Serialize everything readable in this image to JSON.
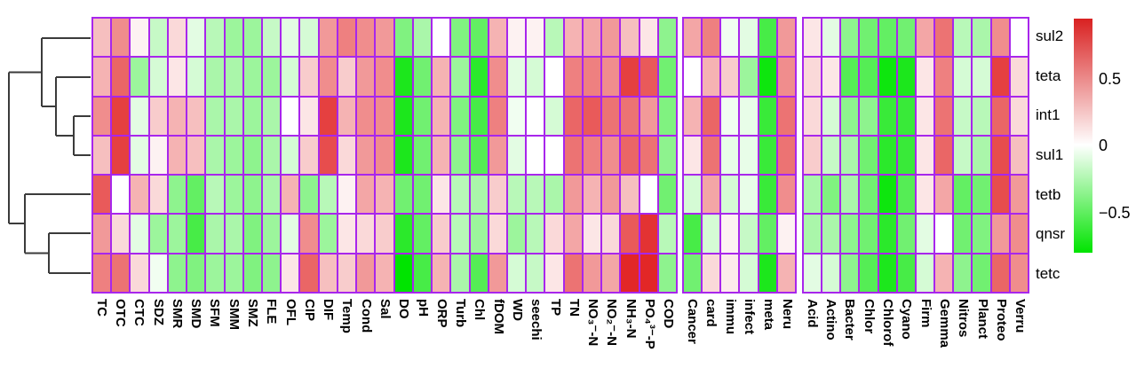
{
  "chart_data": {
    "type": "heatmap",
    "title": "",
    "rows": [
      "sul2",
      "teta",
      "int1",
      "sul1",
      "tetb",
      "qnsr",
      "tetc"
    ],
    "column_panels": [
      {
        "name": "antibiotics-and-water-quality",
        "columns": [
          "TC",
          "OTC",
          "CTC",
          "SDZ",
          "SMR",
          "SMD",
          "SFM",
          "SMM",
          "SMZ",
          "FLE",
          "OFL",
          "CIP",
          "DIF",
          "Temp",
          "Cond",
          "Sal",
          "DO",
          "pH",
          "ORP",
          "Turb",
          "Chl",
          "fDOM",
          "WD",
          "seechi",
          "TP",
          "TN",
          "NO₃⁻-N",
          "NO₂⁻-N",
          "NH₃-N",
          "PO₄³⁻-P",
          "COD"
        ]
      },
      {
        "name": "disease-categories",
        "columns": [
          "Cancer",
          "card",
          "immu",
          "infect",
          "meta",
          "Neru"
        ]
      },
      {
        "name": "bacterial-phyla",
        "columns": [
          "Acid",
          "Actino",
          "Bacter",
          "Chlor",
          "Chlorof",
          "Cyano",
          "Firm",
          "Gemma",
          "Nitros",
          "Planct",
          "Proteo",
          "Verru"
        ]
      }
    ],
    "values": [
      [
        0.25,
        0.45,
        0.05,
        -0.2,
        0.15,
        -0.1,
        -0.25,
        -0.35,
        -0.35,
        -0.2,
        -0.1,
        -0.15,
        0.4,
        0.5,
        0.45,
        0.4,
        -0.45,
        -0.3,
        0,
        -0.45,
        -0.55,
        0.3,
        0.05,
        0.05,
        -0.25,
        0.3,
        0.35,
        0.4,
        0.25,
        0.1,
        -0.4,
        0.35,
        0.5,
        -0.05,
        -0.1,
        -0.65,
        0.4,
        0.1,
        -0.1,
        -0.4,
        -0.5,
        -0.55,
        -0.5,
        0.35,
        0.55,
        -0.25,
        -0.3,
        0.45,
        0
      ],
      [
        0.3,
        0.6,
        -0.35,
        -0.15,
        0.1,
        -0.15,
        -0.3,
        -0.3,
        -0.35,
        -0.35,
        -0.15,
        0.2,
        0.45,
        0.2,
        0.4,
        0.45,
        -0.8,
        -0.5,
        0.3,
        -0.35,
        -0.75,
        0.45,
        -0.1,
        -0.15,
        0,
        0.5,
        0.5,
        0.45,
        0.75,
        0.65,
        -0.5,
        0,
        0.3,
        0.2,
        -0.35,
        -0.85,
        0.45,
        0.15,
        0.1,
        -0.6,
        -0.6,
        -0.85,
        -0.8,
        0.1,
        0.5,
        -0.15,
        -0.15,
        0.75,
        0.15
      ],
      [
        0.45,
        0.75,
        -0.1,
        0.2,
        0.3,
        0.25,
        -0.3,
        -0.3,
        -0.35,
        -0.3,
        0,
        0.1,
        0.75,
        0.3,
        0.45,
        0.45,
        -0.8,
        -0.5,
        0.3,
        -0.45,
        -0.65,
        0.5,
        -0.05,
        0,
        -0.15,
        0.6,
        0.65,
        0.55,
        0.55,
        0.4,
        -0.45,
        0.3,
        0.6,
        -0.05,
        -0.08,
        -0.7,
        0.55,
        0.15,
        -0.15,
        -0.4,
        -0.4,
        -0.7,
        -0.7,
        0.1,
        0.55,
        -0.2,
        -0.25,
        0.6,
        0.15
      ],
      [
        0.25,
        0.75,
        -0.1,
        0.05,
        0.3,
        0.25,
        -0.3,
        -0.35,
        -0.4,
        -0.3,
        -0.15,
        0.2,
        0.7,
        0.15,
        0.4,
        0.45,
        -0.8,
        -0.5,
        0.3,
        -0.4,
        -0.6,
        0.4,
        -0.1,
        0,
        0,
        0.55,
        0.5,
        0.45,
        0.6,
        0.55,
        -0.4,
        0.1,
        0.55,
        -0.08,
        -0.08,
        -0.7,
        0.55,
        0.2,
        -0.2,
        -0.3,
        -0.5,
        -0.75,
        -0.7,
        0.1,
        0.6,
        -0.2,
        -0.3,
        0.7,
        0.25
      ],
      [
        0.65,
        0,
        0.3,
        0.15,
        -0.4,
        -0.55,
        -0.25,
        -0.35,
        -0.4,
        -0.3,
        0.3,
        -0.4,
        -0.25,
        0.05,
        0.35,
        0.3,
        -0.5,
        -0.5,
        0.1,
        -0.25,
        -0.3,
        0.2,
        -0.25,
        -0.25,
        -0.3,
        0.4,
        0.3,
        0.4,
        0.25,
        0,
        -0.5,
        -0.15,
        0.35,
        -0.15,
        -0.08,
        -0.7,
        0.45,
        -0.3,
        -0.45,
        -0.3,
        -0.5,
        -0.85,
        -0.6,
        0.1,
        0.35,
        -0.55,
        -0.5,
        0.7,
        0.4
      ],
      [
        0.4,
        0.15,
        -0.1,
        -0.35,
        -0.35,
        -0.65,
        -0.3,
        -0.3,
        -0.45,
        -0.35,
        -0.1,
        0.45,
        -0.35,
        0.1,
        0.15,
        0.2,
        -0.75,
        -0.55,
        0.2,
        -0.25,
        -0.35,
        0.15,
        -0.35,
        -0.25,
        0.15,
        0.35,
        0.1,
        0.15,
        0.65,
        0.8,
        -0.25,
        -0.65,
        -0.15,
        0.05,
        -0.2,
        -0.55,
        0.05,
        -0.3,
        -0.3,
        -0.4,
        -0.5,
        -0.75,
        -0.5,
        -0.1,
        0,
        -0.5,
        -0.45,
        0.4,
        0.45
      ],
      [
        0.5,
        0.55,
        0.15,
        -0.05,
        -0.4,
        -0.45,
        -0.35,
        -0.35,
        -0.45,
        -0.4,
        0.1,
        0.6,
        0.25,
        0.2,
        0.4,
        0.3,
        -0.9,
        -0.65,
        0.3,
        -0.3,
        -0.6,
        0.4,
        -0.15,
        -0.2,
        0.1,
        0.55,
        0.4,
        0.35,
        0.85,
        0.85,
        -0.4,
        -0.5,
        0.15,
        0.08,
        -0.15,
        -0.8,
        0.3,
        -0.1,
        -0.15,
        -0.4,
        -0.6,
        -0.8,
        -0.65,
        -0.15,
        0.3,
        -0.4,
        -0.5,
        0.6,
        0.45
      ]
    ],
    "colorscale": {
      "min": -0.9,
      "max": 0.9,
      "max_color": "#E01A1A",
      "mid_color": "#FFFFFF",
      "min_color": "#00E400"
    },
    "legend_position": "right",
    "row_dendrogram": {
      "topology": "((sul2,(teta,(int1,sul1))),(tetb,(qnsr,tetc)))",
      "segments": [
        [
          102,
          43,
          47,
          43
        ],
        [
          47,
          43,
          47,
          120
        ],
        [
          102,
          87,
          63,
          87
        ],
        [
          102,
          131,
          83,
          131
        ],
        [
          102,
          175,
          83,
          175
        ],
        [
          83,
          131,
          83,
          175
        ],
        [
          83,
          153,
          63,
          153
        ],
        [
          63,
          87,
          63,
          153
        ],
        [
          63,
          120,
          47,
          120
        ],
        [
          47,
          81.5,
          10,
          81.5
        ],
        [
          10,
          81.5,
          10,
          252
        ],
        [
          102,
          219,
          28,
          219
        ],
        [
          102,
          263,
          55,
          263
        ],
        [
          102,
          308,
          55,
          308
        ],
        [
          55,
          263,
          55,
          308
        ],
        [
          55,
          285.5,
          28,
          285.5
        ],
        [
          28,
          219,
          28,
          285.5
        ],
        [
          28,
          252,
          10,
          252
        ]
      ]
    }
  },
  "legend": {
    "ticks": [
      {
        "label": "0.5"
      },
      {
        "label": "0"
      },
      {
        "label": "−0.5"
      }
    ]
  },
  "colors": {
    "cell_border": "#A826EC",
    "dendrogram": "#3B3B3B",
    "legend_top": "#D92121",
    "legend_mid": "#FFFFFF",
    "legend_bottom": "#00E400",
    "background": "#FFFFFF"
  }
}
